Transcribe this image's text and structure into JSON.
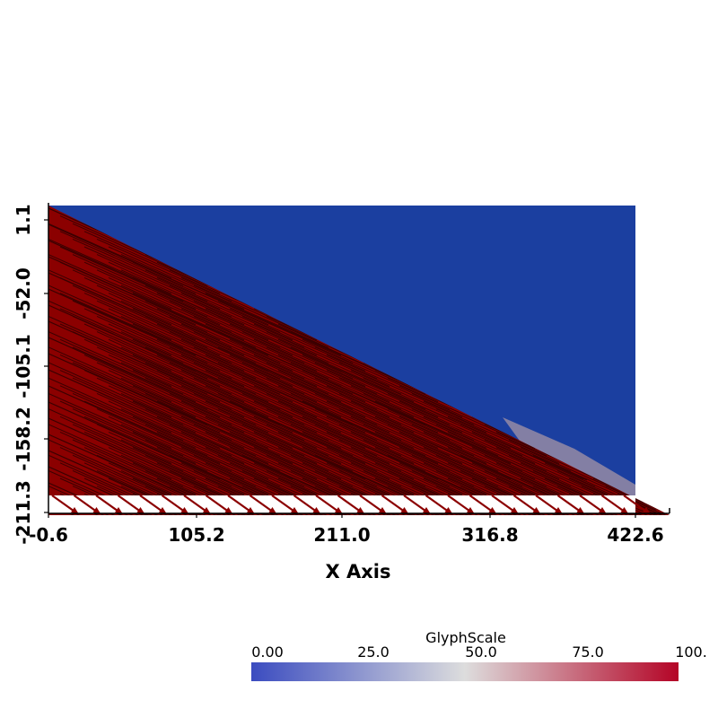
{
  "chart_data": {
    "type": "glyph-field",
    "xlabel": "X Axis",
    "ylabel": "",
    "x_ticks": [
      "-0.6",
      "105.2",
      "211.0",
      "316.8",
      "422.6"
    ],
    "x_tick_values": [
      -0.6,
      105.2,
      211.0,
      316.8,
      422.6
    ],
    "y_ticks": [
      "1.1",
      "-52.0",
      "-105.1",
      "-158.2",
      "-211.3"
    ],
    "y_tick_values": [
      1.1,
      -52.0,
      -105.1,
      -158.2,
      -211.3
    ],
    "xlim": [
      -0.6,
      422.6
    ],
    "ylim": [
      -211.3,
      1.1
    ],
    "grid": false,
    "domain_polygon": [
      [
        -0.6,
        1.1
      ],
      [
        422.6,
        1.1
      ],
      [
        422.6,
        -211.3
      ],
      [
        -0.6,
        -211.3
      ]
    ],
    "glyph_region_polygon": [
      [
        -0.6,
        1.1
      ],
      [
        440.0,
        -211.3
      ],
      [
        -0.6,
        -211.3
      ]
    ],
    "glyph_direction_deg": -24,
    "background_value": 0.0,
    "glyph_value": 100.0,
    "colorbar": {
      "title": "GlyphScale",
      "ticks": [
        "0.00",
        "25.0",
        "50.0",
        "75.0",
        "100."
      ],
      "range": [
        0,
        100
      ],
      "colormap": [
        "#3b4cc0",
        "#dddddd",
        "#b40426"
      ]
    },
    "colors": {
      "background_fill": "#1b3fa0",
      "glyph_fill": "#8b0000",
      "glyph_edge": "#3a0000",
      "colormap_low": "#3b4cc0",
      "colormap_mid": "#dddddd",
      "colormap_high": "#b40426"
    }
  }
}
